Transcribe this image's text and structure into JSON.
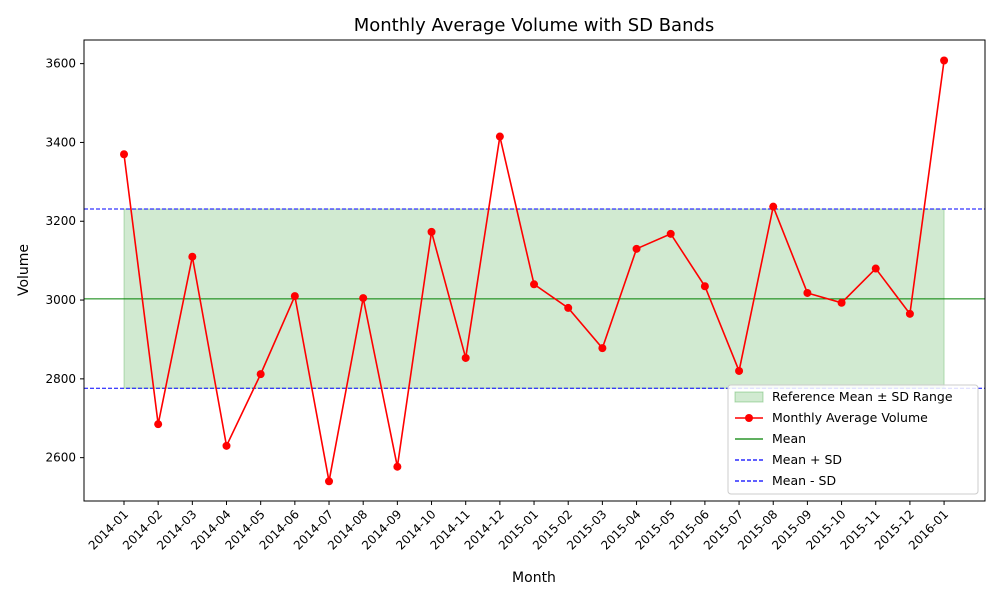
{
  "chart_data": {
    "type": "line",
    "title": "Monthly Average Volume with SD Bands",
    "xlabel": "Month",
    "ylabel": "Volume",
    "ylim": [
      2490,
      3660
    ],
    "yticks": [
      2600,
      2800,
      3000,
      3200,
      3400,
      3600
    ],
    "categories": [
      "2014-01",
      "2014-02",
      "2014-03",
      "2014-04",
      "2014-05",
      "2014-06",
      "2014-07",
      "2014-08",
      "2014-09",
      "2014-10",
      "2014-11",
      "2014-12",
      "2015-01",
      "2015-02",
      "2015-03",
      "2015-04",
      "2015-05",
      "2015-06",
      "2015-07",
      "2015-08",
      "2015-09",
      "2015-10",
      "2015-11",
      "2015-12",
      "2016-01"
    ],
    "series": [
      {
        "name": "Monthly Average Volume",
        "color": "#ff0000",
        "values": [
          3370,
          2685,
          3110,
          2630,
          2812,
          3010,
          2540,
          3005,
          2577,
          3173,
          2853,
          3415,
          3040,
          2980,
          2878,
          3130,
          3168,
          3035,
          2820,
          3237,
          3018,
          2993,
          3080,
          2965,
          3608
        ]
      }
    ],
    "mean": 3003,
    "mean_plus_sd": 3231,
    "mean_minus_sd": 2776,
    "band_color": "#2ca02c",
    "mean_color": "#008000",
    "sd_color": "#0000ff",
    "legend": {
      "placement": "lower-right",
      "entries": [
        {
          "label": "Reference Mean ± SD Range",
          "kind": "band"
        },
        {
          "label": "Monthly Average Volume",
          "kind": "line-marker"
        },
        {
          "label": "Mean",
          "kind": "line"
        },
        {
          "label": "Mean + SD",
          "kind": "dashed"
        },
        {
          "label": "Mean - SD",
          "kind": "dashed"
        }
      ]
    }
  }
}
